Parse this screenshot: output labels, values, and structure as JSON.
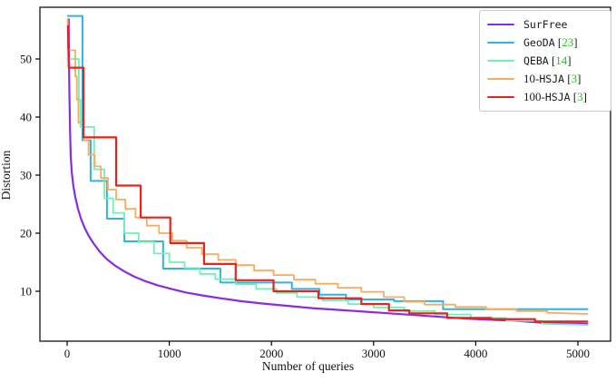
{
  "chart_data": {
    "type": "line",
    "title": "",
    "xlabel": "Number of queries",
    "ylabel": "Distortion",
    "x_ticks": [
      0,
      1000,
      2000,
      3000,
      4000,
      5000
    ],
    "y_ticks": [
      10,
      20,
      30,
      40,
      50
    ],
    "xlim": [
      -270,
      5320
    ],
    "ylim": [
      1.4,
      58.9
    ],
    "grid": false,
    "legend_position": "upper right",
    "citation_color": "#2DBB2D",
    "axis_color": "#000000",
    "series": [
      {
        "name": "SurFree",
        "label_prefix": "",
        "label_tt": "SurFree",
        "cite": null,
        "color": "#8A2BE2",
        "width": 2.2,
        "style": "smooth",
        "points": [
          [
            15,
            57
          ],
          [
            18,
            50
          ],
          [
            22,
            44
          ],
          [
            28,
            38
          ],
          [
            35,
            33.5
          ],
          [
            45,
            30.5
          ],
          [
            60,
            28.2
          ],
          [
            80,
            26.2
          ],
          [
            105,
            24.3
          ],
          [
            135,
            22.5
          ],
          [
            170,
            21
          ],
          [
            210,
            19.6
          ],
          [
            260,
            18.2
          ],
          [
            320,
            16.8
          ],
          [
            390,
            15.5
          ],
          [
            470,
            14.4
          ],
          [
            560,
            13.4
          ],
          [
            660,
            12.5
          ],
          [
            770,
            11.7
          ],
          [
            890,
            11.0
          ],
          [
            1020,
            10.4
          ],
          [
            1160,
            9.8
          ],
          [
            1320,
            9.3
          ],
          [
            1500,
            8.8
          ],
          [
            1700,
            8.3
          ],
          [
            1900,
            7.9
          ],
          [
            2150,
            7.5
          ],
          [
            2400,
            7.1
          ],
          [
            2650,
            6.8
          ],
          [
            2900,
            6.5
          ],
          [
            3150,
            6.2
          ],
          [
            3400,
            5.9
          ],
          [
            3650,
            5.6
          ],
          [
            3900,
            5.3
          ],
          [
            4150,
            5.1
          ],
          [
            4400,
            4.9
          ],
          [
            4650,
            4.6
          ],
          [
            4850,
            4.5
          ],
          [
            5100,
            4.4
          ]
        ]
      },
      {
        "name": "GeoDA",
        "label_prefix": "",
        "label_tt": "GeoDA",
        "cite": "23",
        "color": "#2FB4E0",
        "width": 2.0,
        "style": "step",
        "points": [
          [
            0,
            57.4
          ],
          [
            150,
            57.4
          ],
          [
            150,
            36
          ],
          [
            230,
            36
          ],
          [
            230,
            29
          ],
          [
            390,
            29
          ],
          [
            390,
            22.5
          ],
          [
            560,
            22.5
          ],
          [
            560,
            18.6
          ],
          [
            940,
            18.6
          ],
          [
            940,
            13.9
          ],
          [
            1500,
            13.9
          ],
          [
            1500,
            11.5
          ],
          [
            2200,
            11.5
          ],
          [
            2200,
            10.4
          ],
          [
            2470,
            10.4
          ],
          [
            2470,
            9.4
          ],
          [
            2730,
            9.4
          ],
          [
            2730,
            8.6
          ],
          [
            3200,
            8.6
          ],
          [
            3200,
            8.3
          ],
          [
            3680,
            8.3
          ],
          [
            3680,
            6.9
          ],
          [
            5100,
            6.9
          ]
        ]
      },
      {
        "name": "QEBA",
        "label_prefix": "",
        "label_tt": "QEBA",
        "cite": "14",
        "color": "#6FF0B5",
        "width": 1.8,
        "style": "step",
        "points": [
          [
            15,
            50
          ],
          [
            115,
            50
          ],
          [
            115,
            43
          ],
          [
            130,
            43
          ],
          [
            130,
            38.3
          ],
          [
            265,
            38.3
          ],
          [
            265,
            31
          ],
          [
            365,
            31
          ],
          [
            365,
            26
          ],
          [
            450,
            26
          ],
          [
            450,
            23.5
          ],
          [
            560,
            23.5
          ],
          [
            560,
            20
          ],
          [
            700,
            20
          ],
          [
            700,
            18.5
          ],
          [
            850,
            18.5
          ],
          [
            850,
            16.5
          ],
          [
            1000,
            16.5
          ],
          [
            1000,
            15
          ],
          [
            1150,
            15
          ],
          [
            1150,
            14
          ],
          [
            1300,
            14
          ],
          [
            1300,
            13
          ],
          [
            1450,
            13
          ],
          [
            1450,
            12.1
          ],
          [
            1650,
            12.1
          ],
          [
            1650,
            11.2
          ],
          [
            1850,
            11.2
          ],
          [
            1850,
            10.4
          ],
          [
            2050,
            10.4
          ],
          [
            2050,
            9.7
          ],
          [
            2250,
            9.7
          ],
          [
            2250,
            9.0
          ],
          [
            2500,
            9.0
          ],
          [
            2500,
            8.4
          ],
          [
            2750,
            8.4
          ],
          [
            2750,
            7.8
          ],
          [
            3000,
            7.8
          ],
          [
            3000,
            7.2
          ],
          [
            3300,
            7.2
          ],
          [
            3300,
            6.6
          ],
          [
            3600,
            6.6
          ],
          [
            3600,
            6.0
          ],
          [
            3950,
            6.0
          ],
          [
            3950,
            5.4
          ],
          [
            4300,
            5.4
          ],
          [
            4300,
            4.9
          ],
          [
            4650,
            4.9
          ],
          [
            4650,
            4.4
          ],
          [
            5100,
            4.2
          ]
        ]
      },
      {
        "name": "10-HSJA",
        "label_prefix": "10-",
        "label_tt": "HSJA",
        "cite": "3",
        "color": "#F8AC5E",
        "width": 1.8,
        "style": "step",
        "points": [
          [
            5,
            57
          ],
          [
            10,
            51.5
          ],
          [
            80,
            51.5
          ],
          [
            80,
            47
          ],
          [
            95,
            47
          ],
          [
            95,
            43
          ],
          [
            110,
            43
          ],
          [
            110,
            39
          ],
          [
            160,
            39
          ],
          [
            160,
            36
          ],
          [
            210,
            36
          ],
          [
            210,
            33.5
          ],
          [
            270,
            33.5
          ],
          [
            270,
            31.5
          ],
          [
            330,
            31.5
          ],
          [
            330,
            29.5
          ],
          [
            400,
            29.5
          ],
          [
            400,
            27.5
          ],
          [
            480,
            27.5
          ],
          [
            480,
            25.8
          ],
          [
            570,
            25.8
          ],
          [
            570,
            24.2
          ],
          [
            670,
            24.2
          ],
          [
            670,
            22.7
          ],
          [
            780,
            22.7
          ],
          [
            780,
            21.3
          ],
          [
            900,
            21.3
          ],
          [
            900,
            20
          ],
          [
            1030,
            20
          ],
          [
            1030,
            18.7
          ],
          [
            1170,
            18.7
          ],
          [
            1170,
            17.5
          ],
          [
            1320,
            17.5
          ],
          [
            1320,
            16.4
          ],
          [
            1480,
            16.4
          ],
          [
            1480,
            15.4
          ],
          [
            1650,
            15.4
          ],
          [
            1650,
            14.5
          ],
          [
            1830,
            14.5
          ],
          [
            1830,
            13.6
          ],
          [
            2020,
            13.6
          ],
          [
            2020,
            12.8
          ],
          [
            2220,
            12.8
          ],
          [
            2220,
            12.0
          ],
          [
            2430,
            12.0
          ],
          [
            2430,
            11.3
          ],
          [
            2650,
            11.3
          ],
          [
            2650,
            10.6
          ],
          [
            2880,
            10.6
          ],
          [
            2880,
            9.9
          ],
          [
            3100,
            9.9
          ],
          [
            3100,
            9.0
          ],
          [
            3300,
            9.0
          ],
          [
            3300,
            8.2
          ],
          [
            3500,
            8.2
          ],
          [
            3500,
            7.7
          ],
          [
            3800,
            7.7
          ],
          [
            3800,
            7.3
          ],
          [
            4100,
            7.3
          ],
          [
            4100,
            6.9
          ],
          [
            4400,
            6.9
          ],
          [
            4400,
            6.6
          ],
          [
            4700,
            6.6
          ],
          [
            4700,
            6.3
          ],
          [
            5100,
            6.1
          ]
        ]
      },
      {
        "name": "100-HSJA",
        "label_prefix": "100-",
        "label_tt": "HSJA",
        "cite": "3",
        "color": "#E8221C",
        "width": 2.2,
        "style": "step",
        "points": [
          [
            8,
            55.8
          ],
          [
            16,
            48.5
          ],
          [
            160,
            48.5
          ],
          [
            160,
            36.5
          ],
          [
            480,
            36.5
          ],
          [
            480,
            28.2
          ],
          [
            720,
            28.2
          ],
          [
            720,
            22.7
          ],
          [
            1010,
            22.7
          ],
          [
            1010,
            18.3
          ],
          [
            1340,
            18.3
          ],
          [
            1340,
            14.7
          ],
          [
            1650,
            14.7
          ],
          [
            1650,
            11.9
          ],
          [
            2020,
            11.9
          ],
          [
            2020,
            10.0
          ],
          [
            2460,
            10.0
          ],
          [
            2460,
            8.8
          ],
          [
            2880,
            8.8
          ],
          [
            2880,
            7.8
          ],
          [
            3150,
            7.8
          ],
          [
            3150,
            6.7
          ],
          [
            3350,
            6.7
          ],
          [
            3350,
            6.2
          ],
          [
            3720,
            6.2
          ],
          [
            3720,
            5.4
          ],
          [
            4150,
            5.4
          ],
          [
            4150,
            5.2
          ],
          [
            4580,
            5.2
          ],
          [
            4580,
            4.8
          ],
          [
            5100,
            4.8
          ]
        ]
      }
    ]
  },
  "legend": {
    "bracket_open": " [",
    "bracket_close": "]"
  }
}
